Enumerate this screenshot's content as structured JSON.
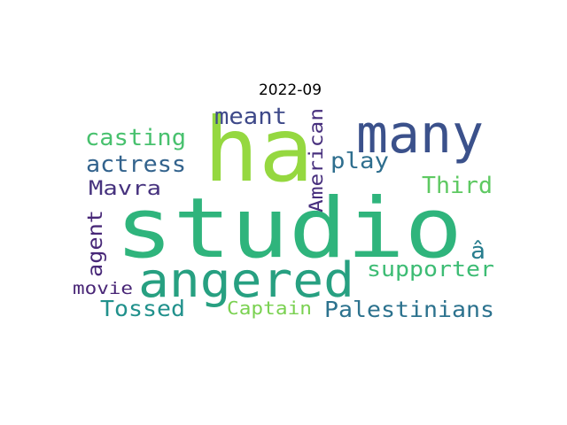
{
  "title": "2022-09",
  "words": [
    {
      "text": "studio",
      "color": "#2fb47c"
    },
    {
      "text": "ha",
      "color": "#95d840"
    },
    {
      "text": "many",
      "color": "#3b518b"
    },
    {
      "text": "angered",
      "color": "#27a081"
    },
    {
      "text": "casting",
      "color": "#48c16e"
    },
    {
      "text": "meant",
      "color": "#3e4989"
    },
    {
      "text": "American",
      "color": "#472f7d"
    },
    {
      "text": "play",
      "color": "#2e6e8e"
    },
    {
      "text": "actress",
      "color": "#33638d"
    },
    {
      "text": "Mavra",
      "color": "#46327e"
    },
    {
      "text": "Third",
      "color": "#5ec962"
    },
    {
      "text": "agent",
      "color": "#482878"
    },
    {
      "text": "â",
      "color": "#287d8e"
    },
    {
      "text": "supporter",
      "color": "#3dbc74"
    },
    {
      "text": "movie",
      "color": "#482576"
    },
    {
      "text": "Tossed",
      "color": "#21918c"
    },
    {
      "text": "Captain",
      "color": "#7ad151"
    },
    {
      "text": "Palestinians",
      "color": "#2c728e"
    }
  ]
}
